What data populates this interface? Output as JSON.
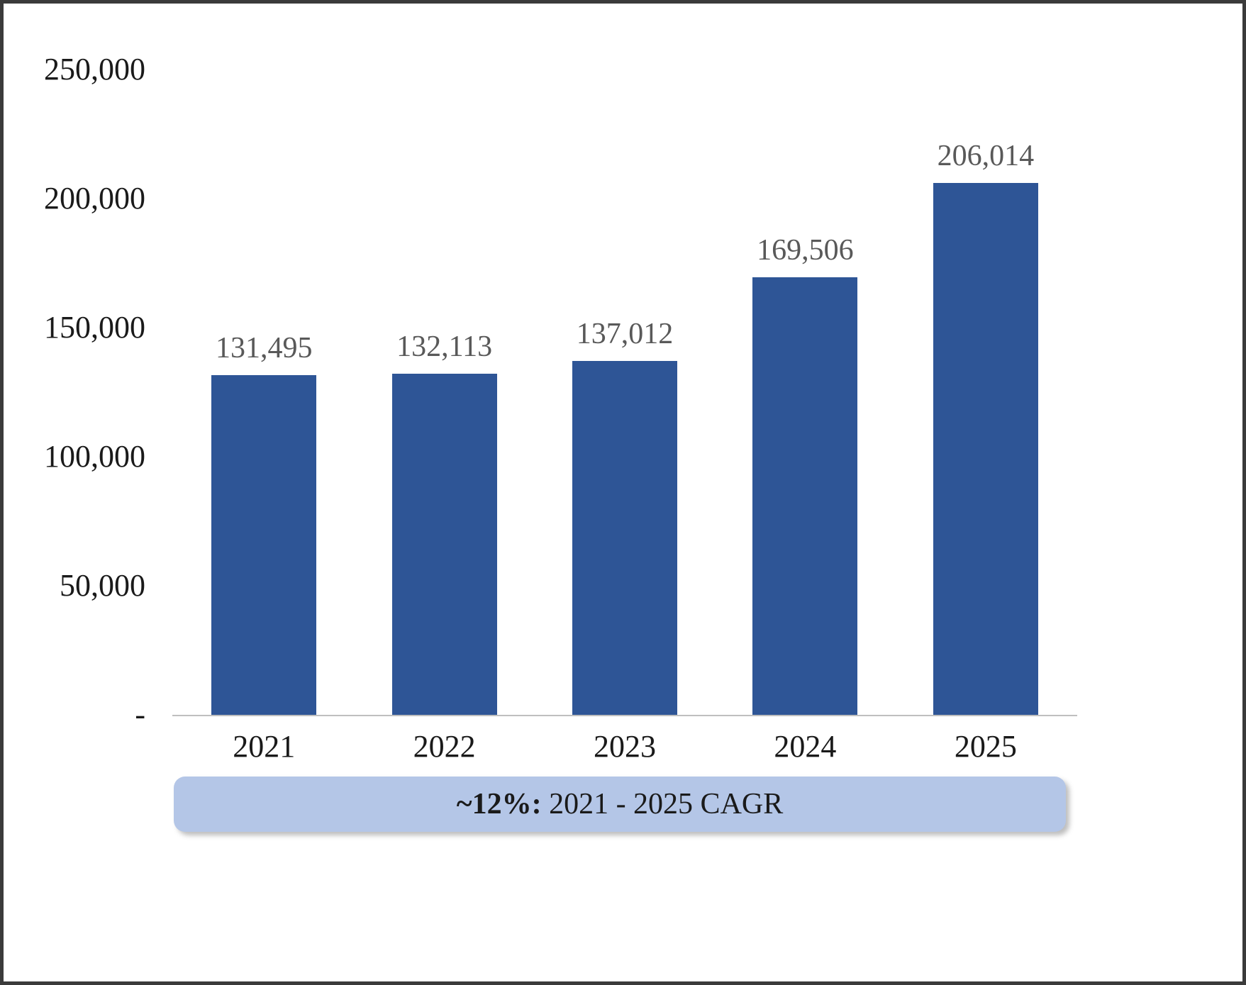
{
  "chart_data": {
    "type": "bar",
    "categories": [
      "2021",
      "2022",
      "2023",
      "2024",
      "2025"
    ],
    "values": [
      131495,
      132113,
      137012,
      169506,
      206014
    ],
    "value_labels": [
      "131,495",
      "132,113",
      "137,012",
      "169,506",
      "206,014"
    ],
    "title": "",
    "xlabel": "",
    "ylabel": "",
    "ylim": [
      0,
      250000
    ],
    "yticks": [
      {
        "value": 0,
        "label": "-"
      },
      {
        "value": 50000,
        "label": "50,000"
      },
      {
        "value": 100000,
        "label": "100,000"
      },
      {
        "value": 150000,
        "label": "150,000"
      },
      {
        "value": 200000,
        "label": "200,000"
      },
      {
        "value": 250000,
        "label": "250,000"
      }
    ],
    "grid": false,
    "legend": null,
    "bar_color": "#2E5596",
    "value_label_color": "#595959",
    "axis_line_color": "#bfbfbf"
  },
  "banner": {
    "bold": "~12%:",
    "text": " 2021 - 2025 CAGR",
    "bg": "#B4C6E7"
  }
}
